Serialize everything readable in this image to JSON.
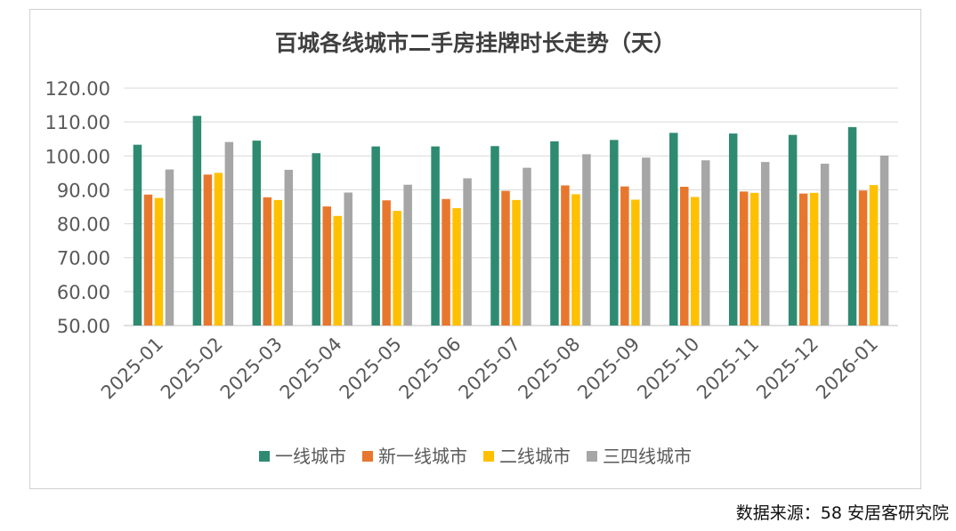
{
  "chart_data": {
    "type": "bar",
    "title": "百城各线城市二手房挂牌时长走势（天）",
    "xlabel": "",
    "ylabel": "",
    "ylim": [
      50,
      120
    ],
    "yticks": [
      50,
      60,
      70,
      80,
      90,
      100,
      110,
      120
    ],
    "ytick_labels": [
      "50.00",
      "60.00",
      "70.00",
      "80.00",
      "90.00",
      "100.00",
      "110.00",
      "120.00"
    ],
    "grid": true,
    "legend_position": "bottom",
    "categories": [
      "2025-01",
      "2025-02",
      "2025-03",
      "2025-04",
      "2025-05",
      "2025-06",
      "2025-07",
      "2025-08",
      "2025-09",
      "2025-10",
      "2025-11",
      "2025-12",
      "2026-01"
    ],
    "series": [
      {
        "name": "一线城市",
        "color": "#2E8B72",
        "values": [
          103.3,
          111.8,
          104.5,
          100.8,
          102.8,
          102.8,
          102.9,
          104.3,
          104.7,
          106.8,
          106.6,
          106.2,
          108.5
        ]
      },
      {
        "name": "新一线城市",
        "color": "#E8772E",
        "values": [
          88.6,
          94.5,
          87.8,
          85.1,
          86.9,
          87.3,
          89.7,
          91.3,
          91.0,
          90.9,
          89.5,
          88.9,
          89.8
        ]
      },
      {
        "name": "二线城市",
        "color": "#FFC000",
        "values": [
          87.6,
          95.0,
          87.0,
          82.3,
          83.8,
          84.6,
          87.0,
          88.7,
          87.1,
          87.9,
          89.1,
          89.1,
          91.4
        ]
      },
      {
        "name": "三四线城市",
        "color": "#A6A6A6",
        "values": [
          96.0,
          104.1,
          95.9,
          89.2,
          91.5,
          93.4,
          96.5,
          100.5,
          99.5,
          98.7,
          98.2,
          97.7,
          100.1
        ]
      }
    ]
  },
  "source_note": "数据来源：58 安居客研究院",
  "watermark_text": "58安居客研究院"
}
